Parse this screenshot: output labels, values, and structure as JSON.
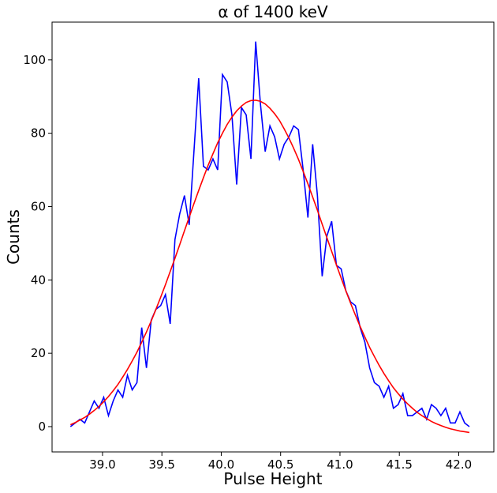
{
  "chart_data": {
    "type": "line",
    "title": "α of 1400 keV",
    "xlabel": "Pulse Height",
    "ylabel": "Counts",
    "x": [
      38.73,
      38.77,
      38.81,
      38.85,
      38.89,
      38.93,
      38.97,
      39.01,
      39.05,
      39.09,
      39.13,
      39.17,
      39.21,
      39.25,
      39.29,
      39.33,
      39.37,
      39.41,
      39.45,
      39.49,
      39.53,
      39.57,
      39.61,
      39.65,
      39.69,
      39.73,
      39.77,
      39.81,
      39.85,
      39.89,
      39.93,
      39.97,
      40.01,
      40.05,
      40.09,
      40.13,
      40.17,
      40.21,
      40.25,
      40.29,
      40.33,
      40.37,
      40.41,
      40.45,
      40.49,
      40.53,
      40.57,
      40.61,
      40.65,
      40.69,
      40.73,
      40.77,
      40.81,
      40.85,
      40.89,
      40.93,
      40.97,
      41.01,
      41.05,
      41.09,
      41.13,
      41.17,
      41.21,
      41.25,
      41.29,
      41.33,
      41.37,
      41.41,
      41.45,
      41.49,
      41.53,
      41.57,
      41.61,
      41.65,
      41.69,
      41.73,
      41.77,
      41.81,
      41.85,
      41.89,
      41.93,
      41.97,
      42.01,
      42.05,
      42.09
    ],
    "series": [
      {
        "color": "#0000ff",
        "values": [
          0,
          1,
          2,
          1,
          4,
          7,
          5,
          8,
          3,
          7,
          10,
          8,
          14,
          10,
          12,
          27,
          16,
          29,
          32,
          33,
          36,
          28,
          51,
          58,
          63,
          55,
          75,
          95,
          71,
          70,
          73,
          70,
          96,
          94,
          85,
          66,
          87,
          85,
          73,
          105,
          88,
          75,
          82,
          79,
          73,
          77,
          79,
          82,
          81,
          70,
          57,
          77,
          63,
          41,
          52,
          56,
          44,
          43,
          37,
          34,
          33,
          27,
          23,
          16,
          12,
          11,
          8,
          11,
          5,
          6,
          9,
          3,
          3,
          4,
          5,
          2,
          6,
          5,
          3,
          5,
          1,
          1,
          4,
          1,
          0
        ]
      },
      {
        "color": "#ff0000",
        "values": [
          0.5,
          1.1,
          1.8,
          2.5,
          3.4,
          4.4,
          5.5,
          6.8,
          8.2,
          9.8,
          11.5,
          13.5,
          15.6,
          17.9,
          20.3,
          23.0,
          25.8,
          28.8,
          32.0,
          35.3,
          38.7,
          42.3,
          45.9,
          49.6,
          53.4,
          57.1,
          60.8,
          64.4,
          67.9,
          71.3,
          74.4,
          77.4,
          80.0,
          82.4,
          84.4,
          86.1,
          87.4,
          88.4,
          88.9,
          89.0,
          88.7,
          88.0,
          86.8,
          85.3,
          83.5,
          81.2,
          78.7,
          75.9,
          72.9,
          69.6,
          66.2,
          62.6,
          59.0,
          55.2,
          51.5,
          47.8,
          44.1,
          40.5,
          37.0,
          33.6,
          30.4,
          27.3,
          24.4,
          21.6,
          19.1,
          16.7,
          14.5,
          12.5,
          10.6,
          9.0,
          7.5,
          6.2,
          5.0,
          3.9,
          3.0,
          2.2,
          1.4,
          0.8,
          0.3,
          -0.2,
          -0.6,
          -0.9,
          -1.2,
          -1.4,
          -1.6
        ]
      }
    ],
    "xlim": [
      38.575,
      42.296
    ],
    "ylim": [
      -6.9,
      110.3
    ],
    "xticks": [
      {
        "value": 39,
        "label": "39.0"
      },
      39.5,
      {
        "value": 40,
        "label": "40.0"
      },
      40.5,
      {
        "value": 41,
        "label": "41.0"
      },
      41.5,
      {
        "value": 42,
        "label": "42.0"
      }
    ],
    "yticks": [
      0,
      20,
      40,
      60,
      80,
      100
    ]
  }
}
